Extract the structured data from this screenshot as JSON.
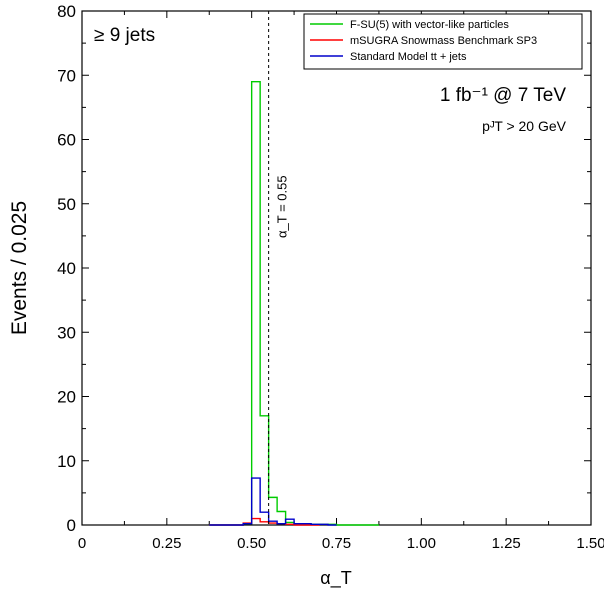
{
  "chart_data": {
    "type": "step-histogram",
    "xlabel": "α_T",
    "ylabel": "Events / 0.025",
    "xlim": [
      0,
      1.5
    ],
    "ylim": [
      0,
      80
    ],
    "x_ticks": [
      0,
      0.25,
      0.5,
      0.75,
      1.0,
      1.25,
      1.5
    ],
    "x_tick_labels": [
      "0",
      "0.25",
      "0.50",
      "0.75",
      "1.00",
      "1.25",
      "1.50"
    ],
    "y_ticks": [
      0,
      10,
      20,
      30,
      40,
      50,
      60,
      70,
      80
    ],
    "y_tick_labels": [
      "0",
      "10",
      "20",
      "30",
      "40",
      "50",
      "60",
      "70",
      "80"
    ],
    "bin_width": 0.025,
    "annotations": {
      "jets": "≥ 9 jets",
      "lumi": "1 fb⁻¹ @ 7 TeV",
      "pt_cut": "pᴶT > 20 GeV",
      "cut_label": "α_T = 0.55",
      "cut_value": 0.55
    },
    "legend_position": "top-right",
    "series": [
      {
        "name": "F-SU(5) with vector-like particles",
        "color": "#00cc00",
        "edges": [
          0.375,
          0.4,
          0.425,
          0.45,
          0.475,
          0.5,
          0.525,
          0.55,
          0.575,
          0.6,
          0.625,
          0.65,
          0.675,
          0.7,
          0.725,
          0.75,
          0.775,
          0.8,
          0.825,
          0.85,
          0.875
        ],
        "values": [
          0,
          0,
          0,
          0,
          0.2,
          69,
          17,
          4.3,
          2.1,
          0.4,
          0.2,
          0.2,
          0.1,
          0.1,
          0.1,
          0,
          0,
          0,
          0,
          0
        ]
      },
      {
        "name": "mSUGRA Snowmass Benchmark SP3",
        "color": "#ff0000",
        "edges": [
          0.375,
          0.4,
          0.425,
          0.45,
          0.475,
          0.5,
          0.525,
          0.55,
          0.575,
          0.6,
          0.625,
          0.65,
          0.675,
          0.7
        ],
        "values": [
          0,
          0,
          0,
          0,
          0.3,
          1.0,
          0.5,
          0.3,
          0.2,
          0.1,
          0,
          0,
          0
        ]
      },
      {
        "name": "Standard Model tt + jets",
        "color": "#0000cc",
        "edges": [
          0.375,
          0.4,
          0.425,
          0.45,
          0.475,
          0.5,
          0.525,
          0.55,
          0.575,
          0.6,
          0.625,
          0.65,
          0.675,
          0.7,
          0.725,
          0.75
        ],
        "values": [
          0,
          0,
          0,
          0,
          0.2,
          7.3,
          2.0,
          0.6,
          0.2,
          0.9,
          0.2,
          0.2,
          0.1,
          0.1,
          0
        ]
      }
    ]
  }
}
